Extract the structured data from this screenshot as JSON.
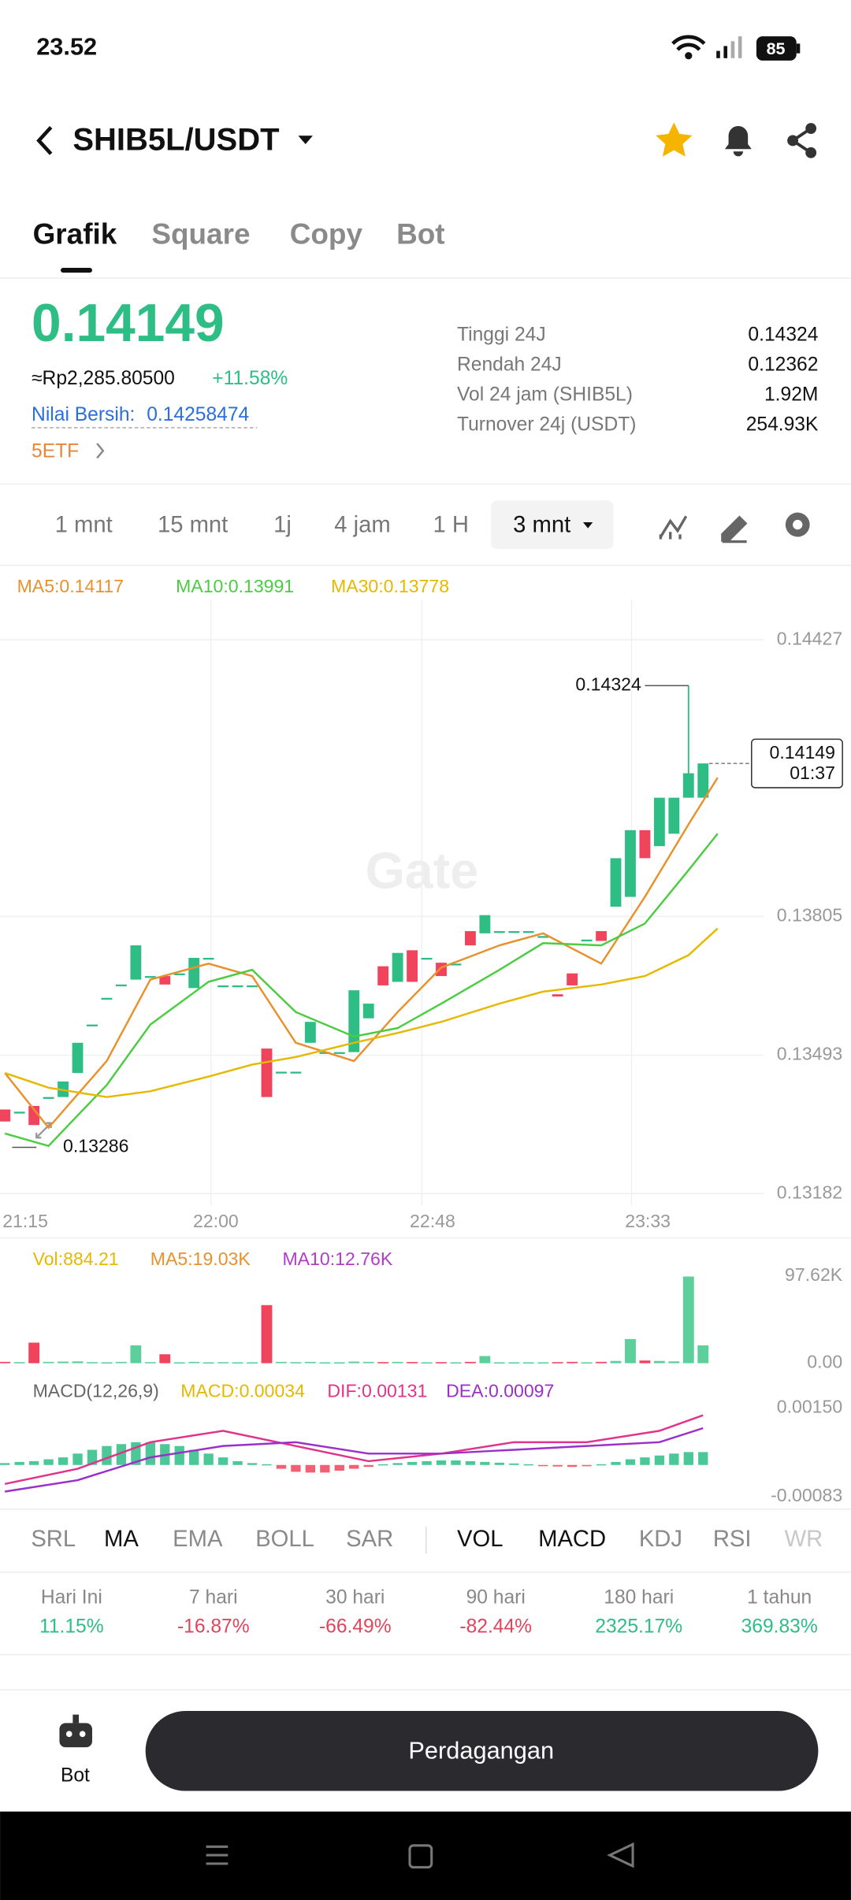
{
  "status_bar": {
    "time": "23.52",
    "battery": "85"
  },
  "header": {
    "pair": "SHIB5L/USDT"
  },
  "tabs": [
    "Grafik",
    "Square",
    "Copy",
    "Bot"
  ],
  "ticker": {
    "price": "0.14149",
    "idr": "≈Rp2,285.80500",
    "change": "+11.58%",
    "nav_label": "Nilai Bersih:",
    "nav_value": "0.14258474",
    "etf": "5ETF"
  },
  "stats": [
    [
      "Tinggi 24J",
      "0.14324"
    ],
    [
      "Rendah 24J",
      "0.12362"
    ],
    [
      "Vol 24 jam (SHIB5L)",
      "1.92M"
    ],
    [
      "Turnover 24j (USDT)",
      "254.93K"
    ]
  ],
  "intervals": [
    "1 mnt",
    "15 mnt",
    "1j",
    "4 jam",
    "1 H",
    "3 mnt"
  ],
  "watermark": "Gate",
  "chart_data": {
    "type": "candlestick",
    "ylim": [
      0.13182,
      0.14427
    ],
    "yticks": [
      0.14427,
      0.13805,
      0.13493,
      0.13182
    ],
    "xticks": [
      {
        "value": 1.4,
        "label": "21:15"
      },
      {
        "value": 14.5,
        "label": "22:00"
      },
      {
        "value": 29.4,
        "label": "22:48"
      },
      {
        "value": 44.2,
        "label": "23:33"
      }
    ],
    "candles": {
      "open": [
        0.13371,
        0.13366,
        0.13379,
        0.13399,
        0.13399,
        0.13453,
        0.13562,
        0.13622,
        0.13652,
        0.13663,
        0.13671,
        0.13671,
        0.13677,
        0.13644,
        0.13712,
        0.1365,
        0.1365,
        0.1365,
        0.13508,
        0.13456,
        0.13456,
        0.13521,
        0.135,
        0.135,
        0.135,
        0.13576,
        0.13693,
        0.13658,
        0.13729,
        0.13712,
        0.13701,
        0.13699,
        0.13772,
        0.13767,
        0.13772,
        0.13772,
        0.13772,
        0.13761,
        0.1363,
        0.13677,
        0.13753,
        0.13772,
        0.13827,
        0.13849,
        0.13999,
        0.13963,
        0.13991,
        0.14072,
        0.14072
      ],
      "close": [
        0.13344,
        0.13366,
        0.13336,
        0.13399,
        0.13434,
        0.13521,
        0.13562,
        0.13622,
        0.13652,
        0.1374,
        0.13671,
        0.13652,
        0.13677,
        0.13712,
        0.13712,
        0.1365,
        0.1365,
        0.1365,
        0.13399,
        0.13456,
        0.13456,
        0.13568,
        0.135,
        0.135,
        0.13639,
        0.13609,
        0.1365,
        0.13723,
        0.13658,
        0.13712,
        0.13671,
        0.13699,
        0.1374,
        0.13808,
        0.13772,
        0.13772,
        0.13772,
        0.13761,
        0.13625,
        0.1365,
        0.13753,
        0.1375,
        0.13936,
        0.13999,
        0.13936,
        0.14072,
        0.14072,
        0.14127,
        0.14149
      ]
    },
    "series": [
      {
        "name": "MA5:0.14117",
        "color": "#e8912d",
        "x": [
          0,
          3,
          7,
          10,
          14,
          17,
          20,
          24,
          27,
          30,
          34,
          37,
          41,
          44,
          47,
          49
        ],
        "values": [
          0.13453,
          0.1333,
          0.1348,
          0.13663,
          0.13699,
          0.13671,
          0.13521,
          0.1348,
          0.1359,
          0.1369,
          0.1374,
          0.13767,
          0.13699,
          0.13849,
          0.14012,
          0.14117
        ]
      },
      {
        "name": "MA10:0.13991",
        "color": "#4ccc43",
        "x": [
          0,
          3,
          7,
          10,
          14,
          17,
          20,
          24,
          27,
          30,
          34,
          37,
          41,
          44,
          47,
          49
        ],
        "values": [
          0.13317,
          0.13289,
          0.13426,
          0.13562,
          0.13658,
          0.13685,
          0.1359,
          0.13535,
          0.13554,
          0.13609,
          0.13685,
          0.13745,
          0.1374,
          0.13789,
          0.13909,
          0.13991
        ]
      },
      {
        "name": "MA30:0.13778",
        "color": "#e6b800",
        "x": [
          0,
          3,
          7,
          10,
          14,
          17,
          20,
          24,
          27,
          30,
          34,
          37,
          41,
          44,
          47,
          49
        ],
        "values": [
          0.13453,
          0.1342,
          0.13399,
          0.13412,
          0.13445,
          0.13472,
          0.13489,
          0.13521,
          0.13543,
          0.13568,
          0.13609,
          0.13636,
          0.13652,
          0.13671,
          0.13718,
          0.13778
        ]
      }
    ],
    "high": 0.14324,
    "low": 0.13286,
    "last": {
      "price": 0.14149,
      "countdown": "01:37"
    },
    "volume": {
      "label": "Vol:884.21",
      "ma_labels": [
        {
          "name": "MA5:19.03K",
          "color": "#e8912d"
        },
        {
          "name": "MA10:12.76K",
          "color": "#b23cc8"
        }
      ],
      "ylim": [
        0,
        97620
      ],
      "yticks": [
        {
          "value": 97620,
          "label": "97.62K"
        },
        {
          "value": 0,
          "label": "0.00"
        }
      ],
      "values": [
        1500,
        1200,
        23000,
        1500,
        1800,
        2000,
        1200,
        1000,
        1500,
        20000,
        1200,
        10000,
        1000,
        1500,
        1000,
        1200,
        1000,
        1000,
        65000,
        1500,
        1200,
        1500,
        1000,
        1000,
        1800,
        1500,
        1200,
        1500,
        1300,
        1000,
        1200,
        1000,
        1500,
        8000,
        1000,
        1000,
        1000,
        1000,
        1200,
        1500,
        1000,
        1500,
        2500,
        27000,
        3000,
        2500,
        2000,
        97000,
        20000
      ]
    },
    "macd": {
      "title": "MACD(12,26,9)",
      "ylim": [
        -0.00083,
        0.0015
      ],
      "yticks": [
        {
          "value": 0.0015,
          "label": "0.00150"
        },
        -0.00083
      ],
      "series": [
        {
          "name": "MACD:0.00034",
          "color": "#e6b800",
          "values": [
            5e-05,
            8e-05,
            0.0001,
            0.00015,
            0.0002,
            0.0003,
            0.0004,
            0.0005,
            0.00055,
            0.0006,
            0.0006,
            0.00055,
            0.0005,
            0.0004,
            0.0003,
            0.0002,
            0.0001,
            5e-05,
            2e-05,
            -0.0001,
            -0.00018,
            -0.0002,
            -0.0002,
            -0.00015,
            -0.0001,
            -5e-05,
            2e-05,
            5e-05,
            8e-05,
            0.0001,
            0.00012,
            0.00012,
            0.0001,
            8e-05,
            6e-05,
            4e-05,
            2e-05,
            -2e-05,
            -4e-05,
            -5e-05,
            -3e-05,
            2e-05,
            8e-05,
            0.00015,
            0.0002,
            0.00025,
            0.0003,
            0.00034,
            0.00034
          ]
        },
        {
          "name": "DIF:0.00131",
          "color": "#e0338a",
          "x": [
            0,
            5,
            10,
            15,
            20,
            25,
            30,
            35,
            40,
            45,
            48
          ],
          "values": [
            -0.0005,
            -0.0001,
            0.0006,
            0.0009,
            0.0005,
            0.0001,
            0.0003,
            0.0006,
            0.0006,
            0.0009,
            0.00131
          ]
        },
        {
          "name": "DEA:0.00097",
          "color": "#9b30c8",
          "x": [
            0,
            5,
            10,
            15,
            20,
            25,
            30,
            35,
            40,
            45,
            48
          ],
          "values": [
            -0.0007,
            -0.0004,
            0.0002,
            0.0005,
            0.0006,
            0.0003,
            0.0003,
            0.0004,
            0.0005,
            0.0006,
            0.00097
          ]
        }
      ]
    }
  },
  "indicators": {
    "main": [
      "SRL",
      "MA",
      "EMA",
      "BOLL",
      "SAR"
    ],
    "sub": [
      "VOL",
      "MACD",
      "KDJ",
      "RSI",
      "WR"
    ]
  },
  "performance": [
    [
      "Hari Ini",
      "11.15%"
    ],
    [
      "7 hari",
      "-16.87%"
    ],
    [
      "30 hari",
      "-66.49%"
    ],
    [
      "90 hari",
      "-82.44%"
    ],
    [
      "180 hari",
      "2325.17%"
    ],
    [
      "1 tahun",
      "369.83%"
    ]
  ],
  "bottom": {
    "bot": "Bot",
    "trade": "Perdagangan"
  }
}
